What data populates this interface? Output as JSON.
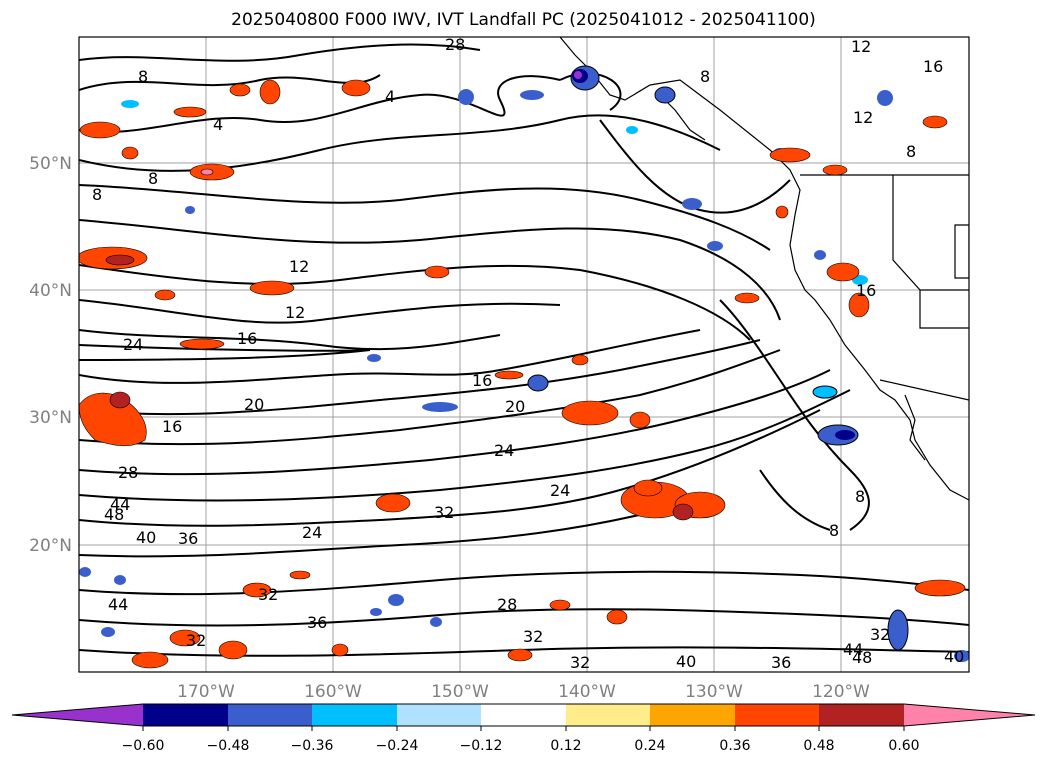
{
  "title": "2025040800 F000 IWV, IVT Landfall PC (2025041012 - 2025041100)",
  "axes": {
    "lat_labels": [
      "50°N",
      "40°N",
      "30°N",
      "20°N"
    ],
    "lon_labels": [
      "170°W",
      "160°W",
      "150°W",
      "140°W",
      "130°W",
      "120°W"
    ]
  },
  "colorbar": {
    "ticks": [
      "−0.60",
      "−0.48",
      "−0.36",
      "−0.24",
      "−0.12",
      "0.12",
      "0.24",
      "0.36",
      "0.48",
      "0.60"
    ],
    "colors": [
      "#9932cc",
      "#00008b",
      "#3a5fcd",
      "#00bfff",
      "#b0e2ff",
      "#ffffff",
      "#ffec8b",
      "#ffa500",
      "#ff4500",
      "#b22222",
      "#ff82ab"
    ]
  },
  "contour_labels": [
    "8",
    "8",
    "8",
    "4",
    "4",
    "28",
    "12",
    "16",
    "12",
    "8",
    "8",
    "12",
    "12",
    "16",
    "24",
    "16",
    "16",
    "20",
    "20",
    "24",
    "24",
    "16",
    "28",
    "44",
    "48",
    "40",
    "36",
    "24",
    "32",
    "8",
    "8",
    "32",
    "36",
    "28",
    "32",
    "32",
    "40",
    "36",
    "44",
    "48",
    "32",
    "40",
    "44",
    "32"
  ]
}
